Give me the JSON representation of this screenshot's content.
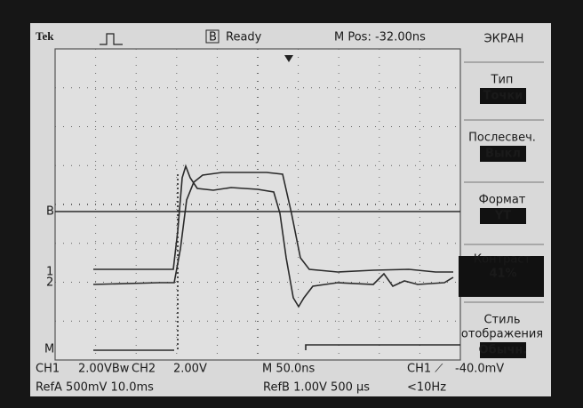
{
  "header": {
    "brand": "Tek",
    "trigger_state": "Ready",
    "acq_mode": "B",
    "position": "M Pos: -32.00ns"
  },
  "markers": {
    "ref_b": "B",
    "ch1": "1",
    "ch2": "2",
    "math": "M"
  },
  "menu": {
    "title": "ЭКРАН",
    "items": [
      {
        "label": [
          "Тип"
        ],
        "value": "Точки"
      },
      {
        "label": [
          "Послесвеч."
        ],
        "value": "Выкл"
      },
      {
        "label": [
          "Формат"
        ],
        "value": "YT"
      },
      {
        "label": [
          "Контраст"
        ],
        "value": "41%"
      },
      {
        "label": [
          "Стиль",
          "отображения"
        ],
        "value": "Обычн."
      }
    ]
  },
  "status": {
    "line1": [
      "CH1",
      "2.00VBw",
      "CH2",
      "2.00V",
      "M 50.0ns",
      "CH1 ⟋",
      "-40.0mV"
    ],
    "line2": [
      "RefA 500mV 10.0ms",
      "RefB 1.00V 500 µs",
      "<10Hz"
    ]
  }
}
